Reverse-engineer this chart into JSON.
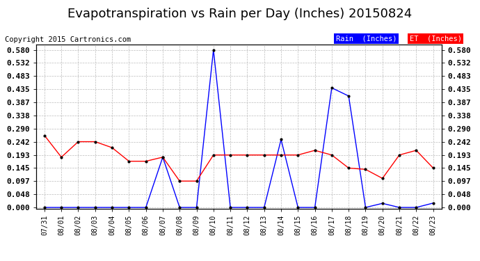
{
  "title": "Evapotranspiration vs Rain per Day (Inches) 20150824",
  "copyright": "Copyright 2015 Cartronics.com",
  "x_labels": [
    "07/31",
    "08/01",
    "08/02",
    "08/03",
    "08/04",
    "08/05",
    "08/06",
    "08/07",
    "08/08",
    "08/09",
    "08/10",
    "08/11",
    "08/12",
    "08/13",
    "08/14",
    "08/15",
    "08/16",
    "08/17",
    "08/18",
    "08/19",
    "08/20",
    "08/21",
    "08/22",
    "08/23"
  ],
  "rain_inches": [
    0.0,
    0.0,
    0.0,
    0.0,
    0.0,
    0.0,
    0.0,
    0.185,
    0.0,
    0.0,
    0.58,
    0.0,
    0.0,
    0.0,
    0.25,
    0.0,
    0.0,
    0.44,
    0.41,
    0.0,
    0.015,
    0.0,
    0.0,
    0.016
  ],
  "et_inches": [
    0.265,
    0.185,
    0.242,
    0.242,
    0.22,
    0.17,
    0.17,
    0.185,
    0.097,
    0.097,
    0.193,
    0.193,
    0.193,
    0.193,
    0.193,
    0.193,
    0.21,
    0.193,
    0.145,
    0.14,
    0.107,
    0.193,
    0.21,
    0.145
  ],
  "rain_color": "#0000ff",
  "et_color": "#ff0000",
  "bg_color": "#ffffff",
  "grid_color": "#bbbbbb",
  "yticks": [
    0.0,
    0.048,
    0.097,
    0.145,
    0.193,
    0.242,
    0.29,
    0.338,
    0.387,
    0.435,
    0.483,
    0.532,
    0.58
  ],
  "ylim": [
    -0.005,
    0.6
  ],
  "title_fontsize": 13,
  "copyright_fontsize": 7.5,
  "legend_rain_label": "Rain  (Inches)",
  "legend_et_label": "ET  (Inches)"
}
